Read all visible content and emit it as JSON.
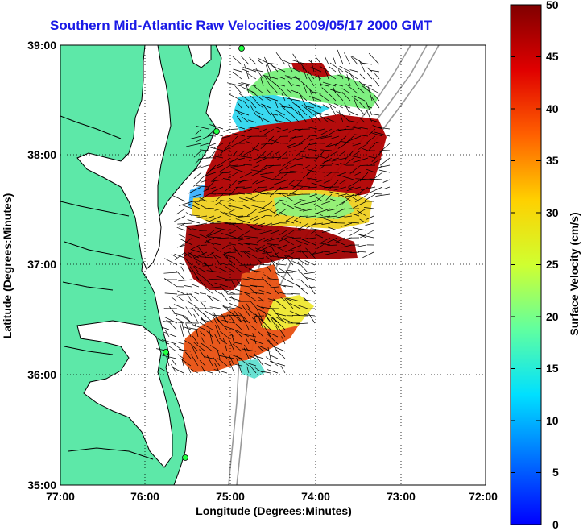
{
  "title": "Southern Mid-Atlantic Raw Velocities 2009/05/17 2000 GMT",
  "x_axis": {
    "label": "Longitude (Degrees:Minutes)",
    "ticks": [
      "77:00",
      "76:00",
      "75:00",
      "74:00",
      "73:00",
      "72:00"
    ]
  },
  "y_axis": {
    "label": "Latitude (Degrees:Minutes)",
    "ticks": [
      "39:00",
      "38:00",
      "37:00",
      "36:00",
      "35:00"
    ]
  },
  "colorbar": {
    "label": "Surface Velocity (cm/s)",
    "ticks": [
      "50",
      "45",
      "40",
      "35",
      "30",
      "25",
      "20",
      "15",
      "10",
      "5",
      "0"
    ],
    "min": 0,
    "max": 50
  },
  "colors": {
    "land": "#5de8a8",
    "title": "#1a1ae6",
    "bathymetry": "#9a9a9a"
  },
  "chart_data": {
    "type": "heatmap",
    "title": "Southern Mid-Atlantic Raw Velocities 2009/05/17 2000 GMT",
    "xlabel": "Longitude (Degrees:Minutes)",
    "ylabel": "Latitude (Degrees:Minutes)",
    "xlim": [
      -77,
      -72
    ],
    "ylim": [
      35,
      39
    ],
    "grid": true,
    "colorbar_range": [
      0,
      50
    ],
    "colorbar_label": "Surface Velocity (cm/s)"
  }
}
